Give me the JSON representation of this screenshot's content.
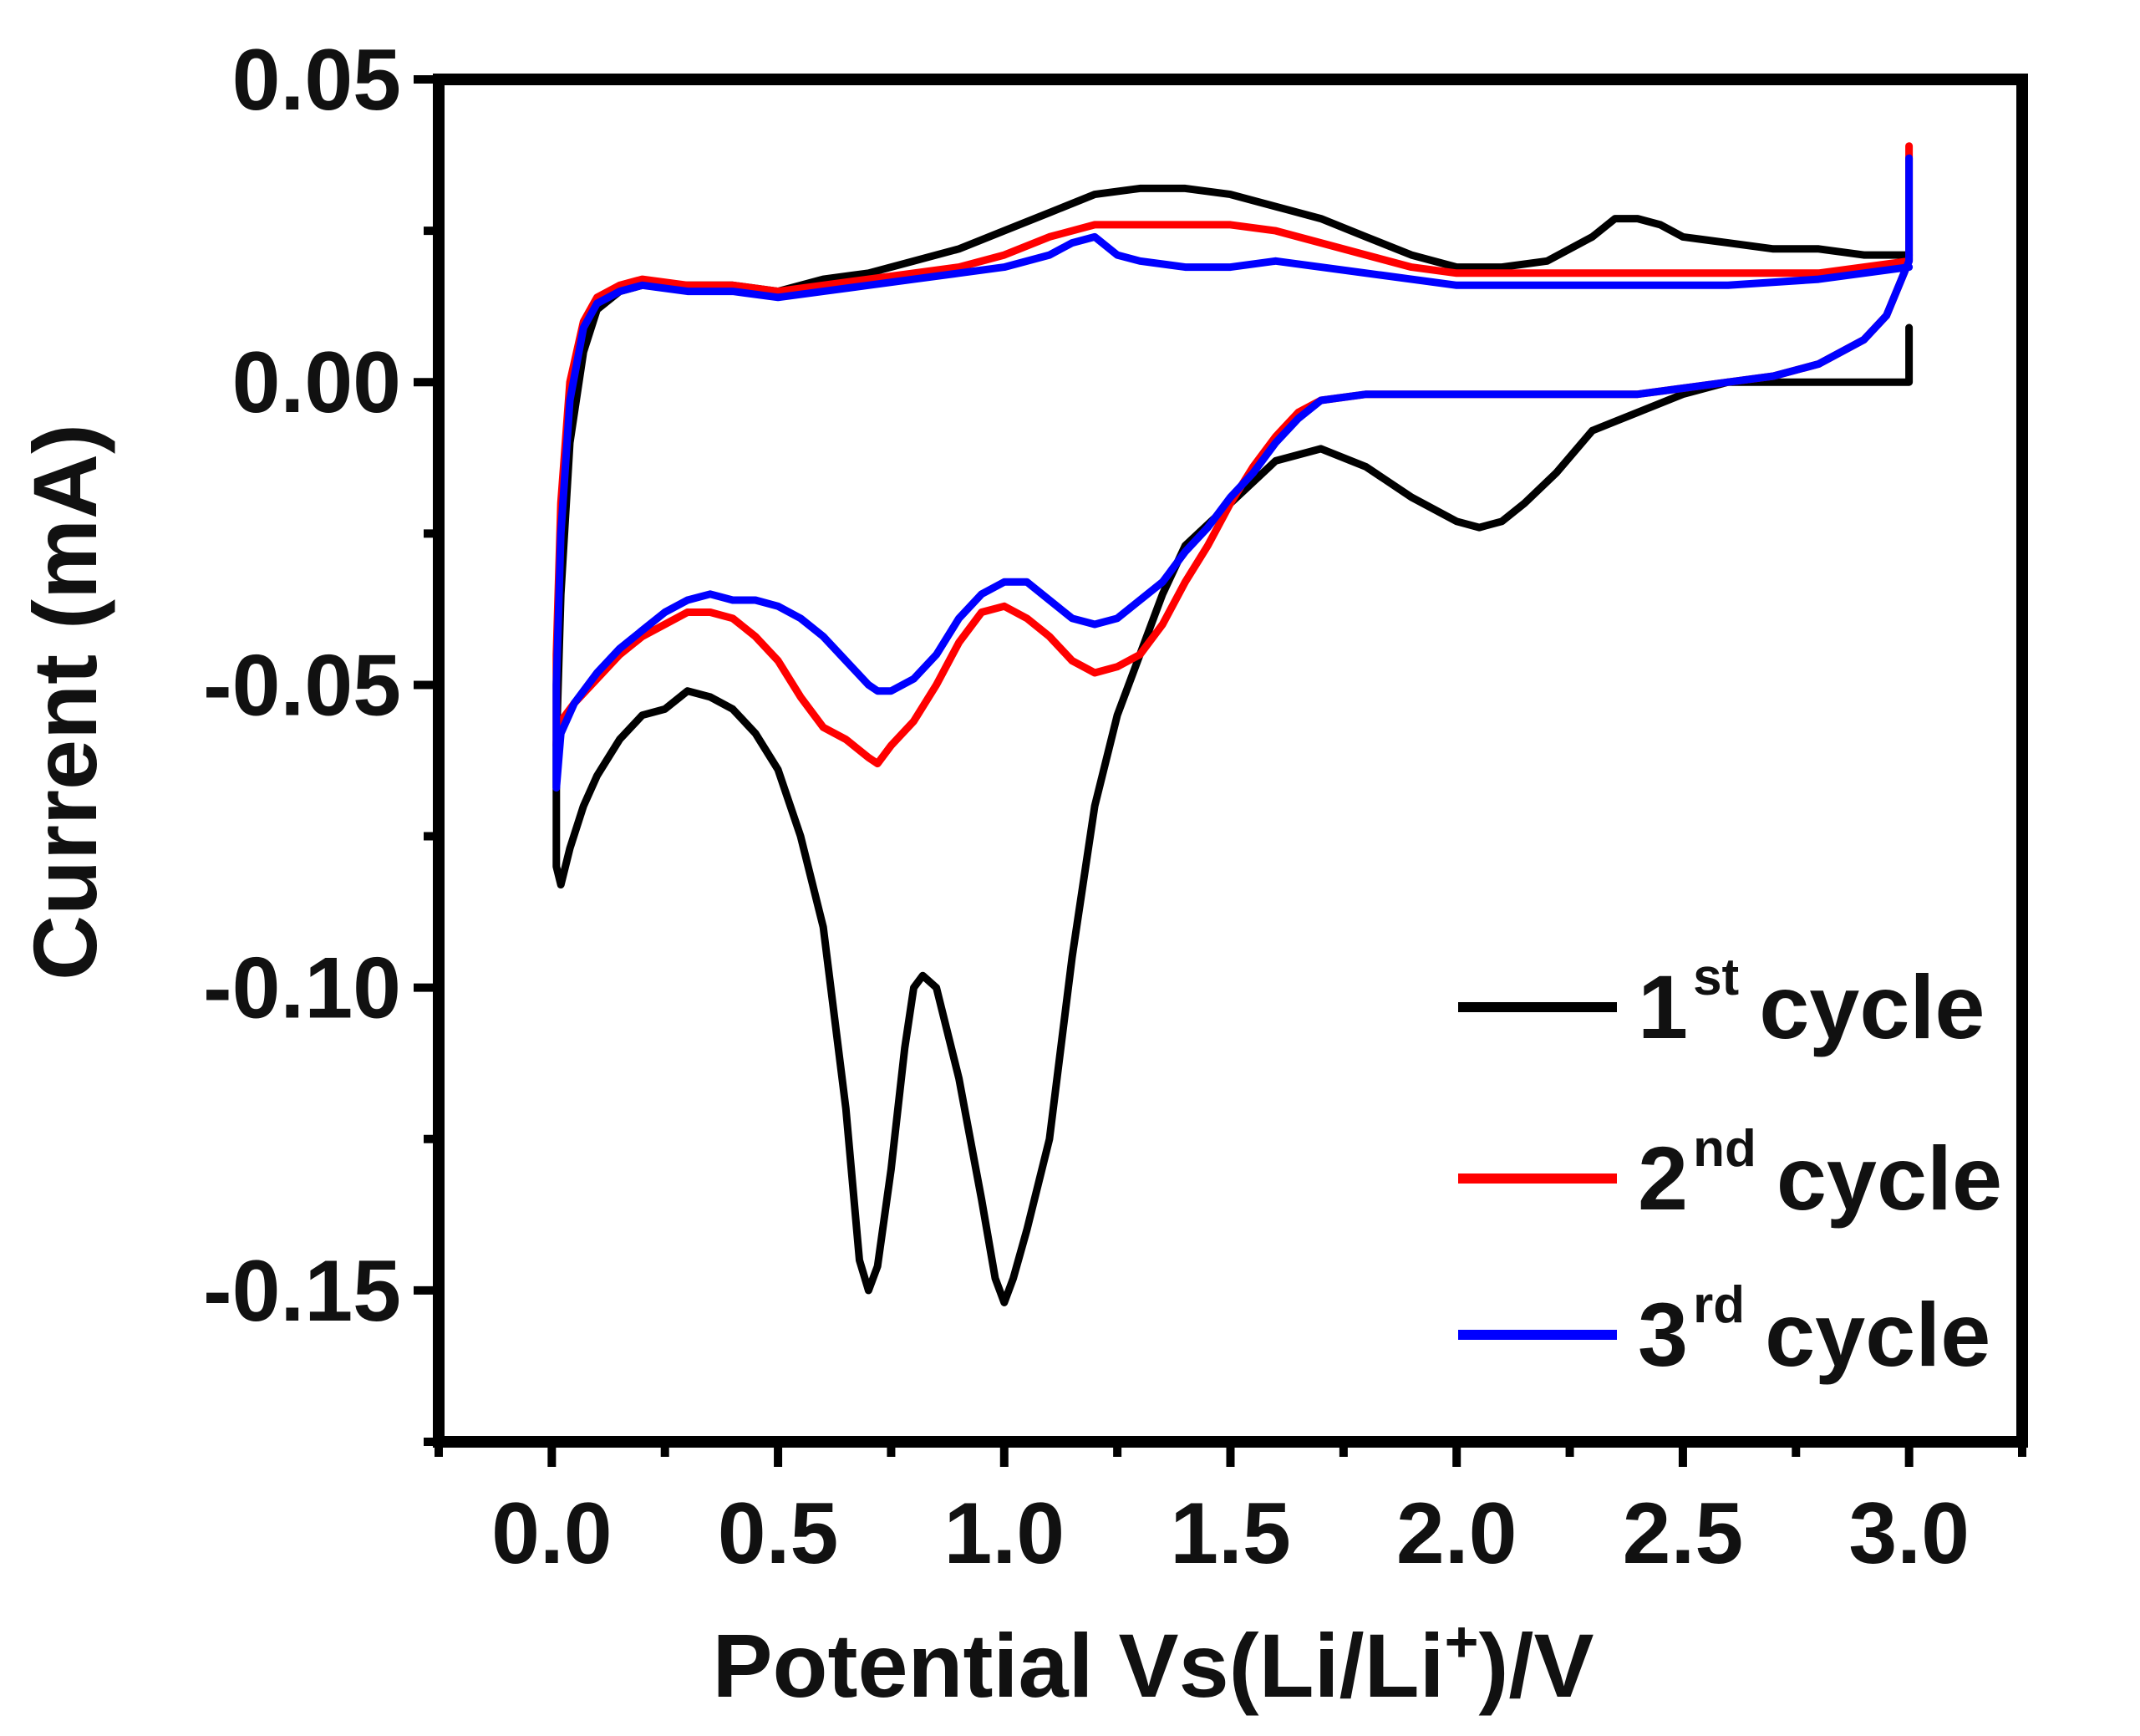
{
  "chart_data": {
    "type": "line",
    "title": "",
    "xlabel": {
      "main": "Potential Vs(Li/Li",
      "sup": "+",
      "tail": ")/V"
    },
    "ylabel": "Current (mA)",
    "xlim": [
      -0.25,
      3.25
    ],
    "ylim": [
      -0.175,
      0.05
    ],
    "x_ticks": [
      {
        "value": 0.0,
        "label": "0.0"
      },
      {
        "value": 0.5,
        "label": "0.5"
      },
      {
        "value": 1.0,
        "label": "1.0"
      },
      {
        "value": 1.5,
        "label": "1.5"
      },
      {
        "value": 2.0,
        "label": "2.0"
      },
      {
        "value": 2.5,
        "label": "2.5"
      },
      {
        "value": 3.0,
        "label": "3.0"
      }
    ],
    "y_ticks": [
      {
        "value": 0.05,
        "label": "0.05"
      },
      {
        "value": 0.0,
        "label": "0.00"
      },
      {
        "value": -0.05,
        "label": "-0.05"
      },
      {
        "value": -0.1,
        "label": "-0.10"
      },
      {
        "value": -0.15,
        "label": "-0.15"
      }
    ],
    "legend_position": "bottom-right",
    "series": [
      {
        "name": "1st cycle",
        "label_num": "1",
        "label_sup": "st",
        "label_text": "cycle",
        "color": "#000000",
        "points": [
          [
            3.0,
            0.009
          ],
          [
            3.0,
            0.0
          ],
          [
            2.8,
            0.0
          ],
          [
            2.6,
            0.0
          ],
          [
            2.5,
            -0.002
          ],
          [
            2.4,
            -0.005
          ],
          [
            2.3,
            -0.008
          ],
          [
            2.22,
            -0.015
          ],
          [
            2.15,
            -0.02
          ],
          [
            2.1,
            -0.023
          ],
          [
            2.05,
            -0.024
          ],
          [
            2.0,
            -0.023
          ],
          [
            1.9,
            -0.019
          ],
          [
            1.8,
            -0.014
          ],
          [
            1.7,
            -0.011
          ],
          [
            1.6,
            -0.013
          ],
          [
            1.5,
            -0.02
          ],
          [
            1.4,
            -0.027
          ],
          [
            1.35,
            -0.035
          ],
          [
            1.3,
            -0.045
          ],
          [
            1.25,
            -0.055
          ],
          [
            1.2,
            -0.07
          ],
          [
            1.15,
            -0.095
          ],
          [
            1.1,
            -0.125
          ],
          [
            1.05,
            -0.14
          ],
          [
            1.02,
            -0.148
          ],
          [
            1.0,
            -0.152
          ],
          [
            0.98,
            -0.148
          ],
          [
            0.95,
            -0.135
          ],
          [
            0.9,
            -0.115
          ],
          [
            0.85,
            -0.1
          ],
          [
            0.82,
            -0.098
          ],
          [
            0.8,
            -0.1
          ],
          [
            0.78,
            -0.11
          ],
          [
            0.75,
            -0.13
          ],
          [
            0.72,
            -0.146
          ],
          [
            0.7,
            -0.15
          ],
          [
            0.68,
            -0.145
          ],
          [
            0.65,
            -0.12
          ],
          [
            0.6,
            -0.09
          ],
          [
            0.55,
            -0.075
          ],
          [
            0.5,
            -0.064
          ],
          [
            0.45,
            -0.058
          ],
          [
            0.4,
            -0.054
          ],
          [
            0.35,
            -0.052
          ],
          [
            0.3,
            -0.051
          ],
          [
            0.25,
            -0.054
          ],
          [
            0.2,
            -0.055
          ],
          [
            0.15,
            -0.059
          ],
          [
            0.1,
            -0.065
          ],
          [
            0.07,
            -0.07
          ],
          [
            0.04,
            -0.077
          ],
          [
            0.02,
            -0.083
          ],
          [
            0.01,
            -0.08
          ],
          [
            0.01,
            -0.06
          ],
          [
            0.02,
            -0.035
          ],
          [
            0.04,
            -0.01
          ],
          [
            0.07,
            0.005
          ],
          [
            0.1,
            0.012
          ],
          [
            0.15,
            0.015
          ],
          [
            0.2,
            0.016
          ],
          [
            0.3,
            0.016
          ],
          [
            0.4,
            0.016
          ],
          [
            0.5,
            0.015
          ],
          [
            0.6,
            0.017
          ],
          [
            0.7,
            0.018
          ],
          [
            0.8,
            0.02
          ],
          [
            0.9,
            0.022
          ],
          [
            1.0,
            0.025
          ],
          [
            1.1,
            0.028
          ],
          [
            1.2,
            0.031
          ],
          [
            1.3,
            0.032
          ],
          [
            1.4,
            0.032
          ],
          [
            1.5,
            0.031
          ],
          [
            1.6,
            0.029
          ],
          [
            1.7,
            0.027
          ],
          [
            1.8,
            0.024
          ],
          [
            1.9,
            0.021
          ],
          [
            2.0,
            0.019
          ],
          [
            2.1,
            0.019
          ],
          [
            2.2,
            0.02
          ],
          [
            2.3,
            0.024
          ],
          [
            2.35,
            0.027
          ],
          [
            2.4,
            0.027
          ],
          [
            2.45,
            0.026
          ],
          [
            2.5,
            0.024
          ],
          [
            2.6,
            0.023
          ],
          [
            2.7,
            0.022
          ],
          [
            2.8,
            0.022
          ],
          [
            2.9,
            0.021
          ],
          [
            3.0,
            0.021
          ]
        ]
      },
      {
        "name": "2nd cycle",
        "label_num": "2",
        "label_sup": "nd",
        "label_text": "cycle",
        "color": "#ff0000",
        "points": [
          [
            3.0,
            0.039
          ],
          [
            3.0,
            0.02
          ],
          [
            2.95,
            0.011
          ],
          [
            2.9,
            0.007
          ],
          [
            2.8,
            0.003
          ],
          [
            2.7,
            0.001
          ],
          [
            2.6,
            0.0
          ],
          [
            2.5,
            -0.001
          ],
          [
            2.4,
            -0.002
          ],
          [
            2.2,
            -0.002
          ],
          [
            2.0,
            -0.002
          ],
          [
            1.9,
            -0.002
          ],
          [
            1.8,
            -0.002
          ],
          [
            1.7,
            -0.003
          ],
          [
            1.65,
            -0.005
          ],
          [
            1.6,
            -0.009
          ],
          [
            1.55,
            -0.014
          ],
          [
            1.5,
            -0.02
          ],
          [
            1.45,
            -0.027
          ],
          [
            1.4,
            -0.033
          ],
          [
            1.35,
            -0.04
          ],
          [
            1.3,
            -0.045
          ],
          [
            1.25,
            -0.047
          ],
          [
            1.2,
            -0.048
          ],
          [
            1.15,
            -0.046
          ],
          [
            1.1,
            -0.042
          ],
          [
            1.05,
            -0.039
          ],
          [
            1.0,
            -0.037
          ],
          [
            0.95,
            -0.038
          ],
          [
            0.9,
            -0.043
          ],
          [
            0.85,
            -0.05
          ],
          [
            0.8,
            -0.056
          ],
          [
            0.75,
            -0.06
          ],
          [
            0.72,
            -0.063
          ],
          [
            0.7,
            -0.062
          ],
          [
            0.65,
            -0.059
          ],
          [
            0.6,
            -0.057
          ],
          [
            0.55,
            -0.052
          ],
          [
            0.5,
            -0.046
          ],
          [
            0.45,
            -0.042
          ],
          [
            0.4,
            -0.039
          ],
          [
            0.35,
            -0.038
          ],
          [
            0.3,
            -0.038
          ],
          [
            0.25,
            -0.04
          ],
          [
            0.2,
            -0.042
          ],
          [
            0.15,
            -0.045
          ],
          [
            0.1,
            -0.049
          ],
          [
            0.05,
            -0.053
          ],
          [
            0.02,
            -0.056
          ],
          [
            0.01,
            -0.06
          ],
          [
            0.01,
            -0.045
          ],
          [
            0.02,
            -0.02
          ],
          [
            0.04,
            0.0
          ],
          [
            0.07,
            0.01
          ],
          [
            0.1,
            0.014
          ],
          [
            0.15,
            0.016
          ],
          [
            0.2,
            0.017
          ],
          [
            0.3,
            0.016
          ],
          [
            0.4,
            0.016
          ],
          [
            0.5,
            0.015
          ],
          [
            0.6,
            0.016
          ],
          [
            0.7,
            0.017
          ],
          [
            0.8,
            0.018
          ],
          [
            0.9,
            0.019
          ],
          [
            1.0,
            0.021
          ],
          [
            1.1,
            0.024
          ],
          [
            1.2,
            0.026
          ],
          [
            1.3,
            0.026
          ],
          [
            1.4,
            0.026
          ],
          [
            1.5,
            0.026
          ],
          [
            1.6,
            0.025
          ],
          [
            1.7,
            0.023
          ],
          [
            1.8,
            0.021
          ],
          [
            1.9,
            0.019
          ],
          [
            2.0,
            0.018
          ],
          [
            2.2,
            0.018
          ],
          [
            2.4,
            0.018
          ],
          [
            2.6,
            0.018
          ],
          [
            2.8,
            0.018
          ],
          [
            3.0,
            0.02
          ]
        ]
      },
      {
        "name": "3rd cycle",
        "label_num": "3",
        "label_sup": "rd",
        "label_text": "cycle",
        "color": "#0000ff",
        "points": [
          [
            3.0,
            0.037
          ],
          [
            3.0,
            0.02
          ],
          [
            2.95,
            0.011
          ],
          [
            2.9,
            0.007
          ],
          [
            2.8,
            0.003
          ],
          [
            2.7,
            0.001
          ],
          [
            2.6,
            0.0
          ],
          [
            2.5,
            -0.001
          ],
          [
            2.4,
            -0.002
          ],
          [
            2.2,
            -0.002
          ],
          [
            2.0,
            -0.002
          ],
          [
            1.9,
            -0.002
          ],
          [
            1.8,
            -0.002
          ],
          [
            1.7,
            -0.003
          ],
          [
            1.65,
            -0.006
          ],
          [
            1.6,
            -0.01
          ],
          [
            1.55,
            -0.015
          ],
          [
            1.5,
            -0.019
          ],
          [
            1.45,
            -0.024
          ],
          [
            1.4,
            -0.028
          ],
          [
            1.35,
            -0.033
          ],
          [
            1.3,
            -0.036
          ],
          [
            1.25,
            -0.039
          ],
          [
            1.2,
            -0.04
          ],
          [
            1.15,
            -0.039
          ],
          [
            1.1,
            -0.036
          ],
          [
            1.05,
            -0.033
          ],
          [
            1.0,
            -0.033
          ],
          [
            0.95,
            -0.035
          ],
          [
            0.9,
            -0.039
          ],
          [
            0.85,
            -0.045
          ],
          [
            0.8,
            -0.049
          ],
          [
            0.75,
            -0.051
          ],
          [
            0.72,
            -0.051
          ],
          [
            0.7,
            -0.05
          ],
          [
            0.65,
            -0.046
          ],
          [
            0.6,
            -0.042
          ],
          [
            0.55,
            -0.039
          ],
          [
            0.5,
            -0.037
          ],
          [
            0.45,
            -0.036
          ],
          [
            0.4,
            -0.036
          ],
          [
            0.35,
            -0.035
          ],
          [
            0.3,
            -0.036
          ],
          [
            0.25,
            -0.038
          ],
          [
            0.2,
            -0.041
          ],
          [
            0.15,
            -0.044
          ],
          [
            0.1,
            -0.048
          ],
          [
            0.05,
            -0.053
          ],
          [
            0.02,
            -0.058
          ],
          [
            0.01,
            -0.067
          ],
          [
            0.01,
            -0.05
          ],
          [
            0.02,
            -0.025
          ],
          [
            0.04,
            -0.003
          ],
          [
            0.07,
            0.009
          ],
          [
            0.1,
            0.013
          ],
          [
            0.15,
            0.015
          ],
          [
            0.2,
            0.016
          ],
          [
            0.3,
            0.015
          ],
          [
            0.4,
            0.015
          ],
          [
            0.5,
            0.014
          ],
          [
            0.6,
            0.015
          ],
          [
            0.7,
            0.016
          ],
          [
            0.8,
            0.017
          ],
          [
            0.9,
            0.018
          ],
          [
            1.0,
            0.019
          ],
          [
            1.1,
            0.021
          ],
          [
            1.15,
            0.023
          ],
          [
            1.2,
            0.024
          ],
          [
            1.25,
            0.021
          ],
          [
            1.3,
            0.02
          ],
          [
            1.4,
            0.019
          ],
          [
            1.5,
            0.019
          ],
          [
            1.6,
            0.02
          ],
          [
            1.7,
            0.019
          ],
          [
            1.8,
            0.018
          ],
          [
            1.9,
            0.017
          ],
          [
            2.0,
            0.016
          ],
          [
            2.2,
            0.016
          ],
          [
            2.4,
            0.016
          ],
          [
            2.6,
            0.016
          ],
          [
            2.8,
            0.017
          ],
          [
            3.0,
            0.019
          ]
        ]
      }
    ]
  }
}
